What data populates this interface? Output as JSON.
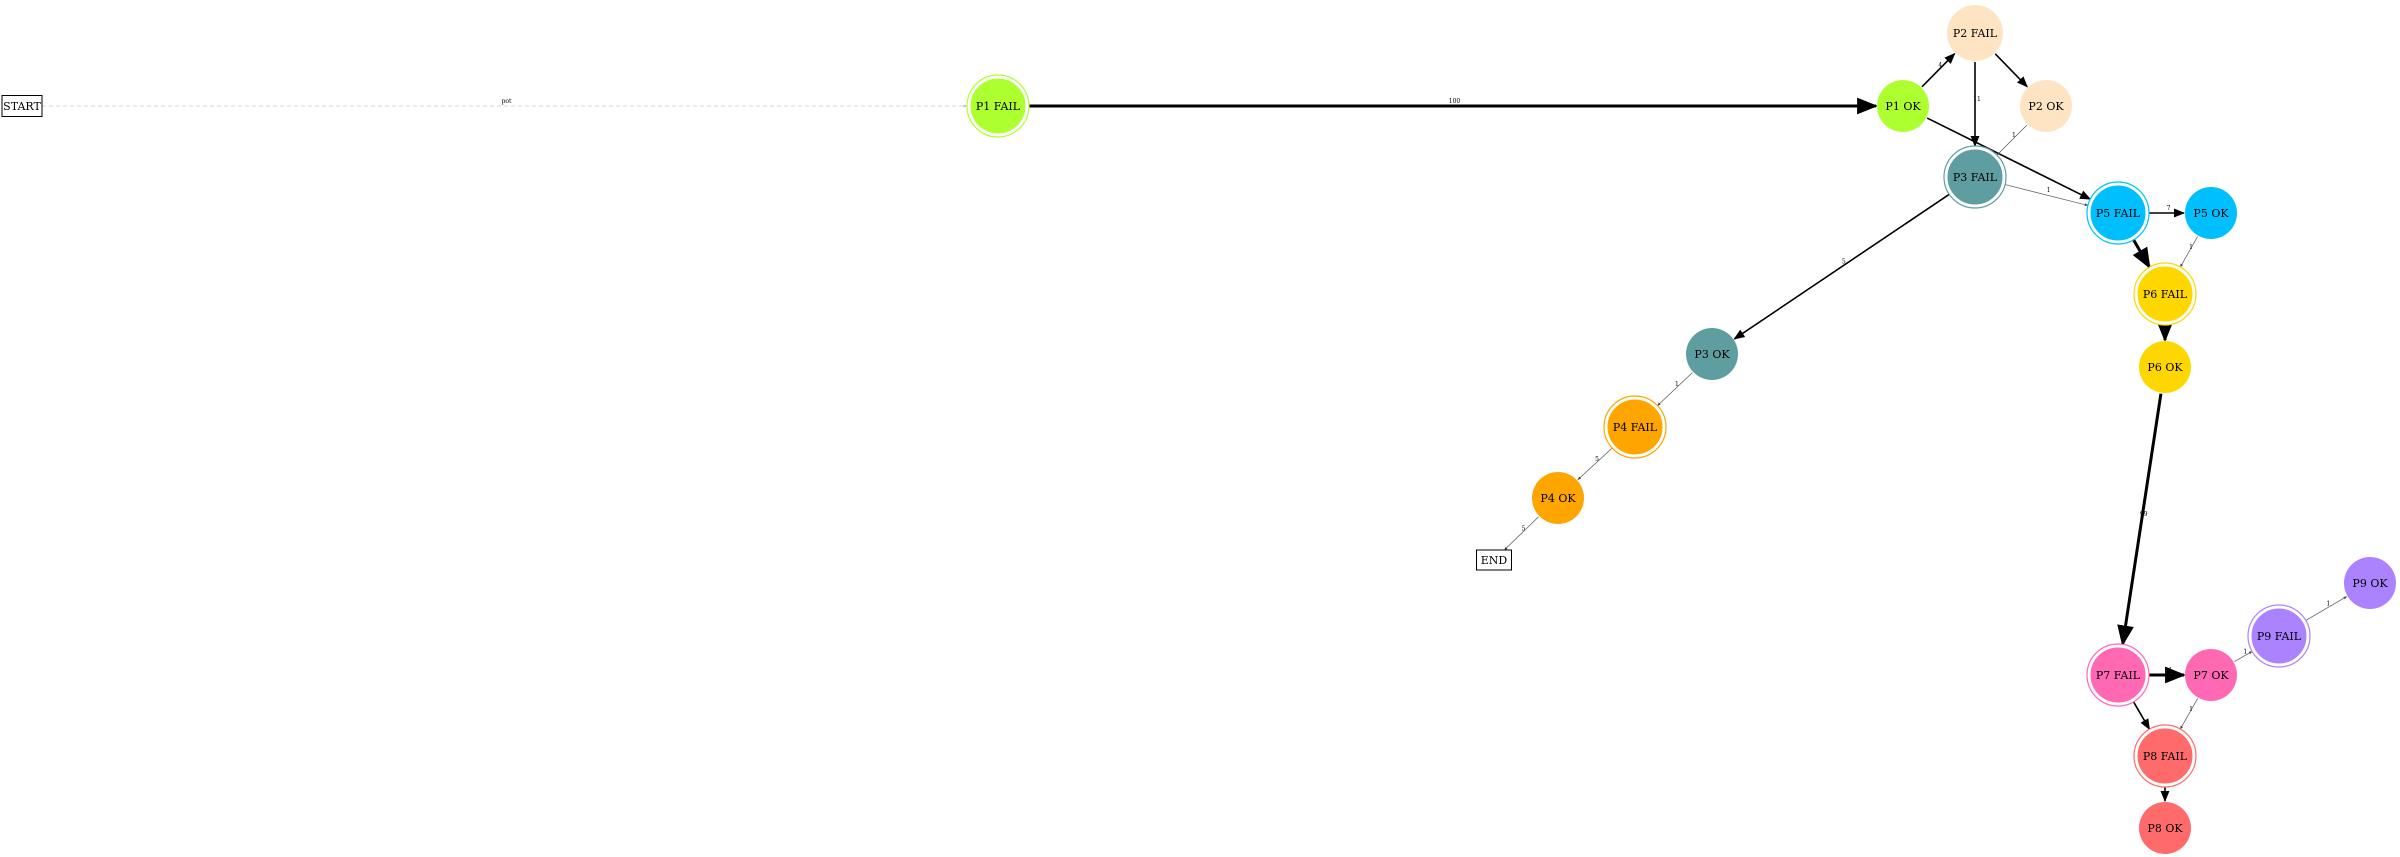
{
  "diagram": {
    "nodes": [
      {
        "id": "start",
        "label": "START",
        "shape": "box"
      },
      {
        "id": "end",
        "label": "END",
        "shape": "box"
      },
      {
        "id": "p1fail",
        "label": "P1 FAIL",
        "color": "#adff2f",
        "double": true
      },
      {
        "id": "p1ok",
        "label": "P1 OK",
        "color": "#adff2f",
        "double": false
      },
      {
        "id": "p2fail",
        "label": "P2 FAIL",
        "color": "#ffe4c4",
        "double": false
      },
      {
        "id": "p2ok",
        "label": "P2 OK",
        "color": "#ffe4c4",
        "double": false
      },
      {
        "id": "p3fail",
        "label": "P3 FAIL",
        "color": "#5f9ea0",
        "double": true
      },
      {
        "id": "p3ok",
        "label": "P3 OK",
        "color": "#5f9ea0",
        "double": false
      },
      {
        "id": "p4fail",
        "label": "P4 FAIL",
        "color": "#ffa500",
        "double": true
      },
      {
        "id": "p4ok",
        "label": "P4 OK",
        "color": "#ffa500",
        "double": false
      },
      {
        "id": "p5fail",
        "label": "P5 FAIL",
        "color": "#00bfff",
        "double": true
      },
      {
        "id": "p5ok",
        "label": "P5 OK",
        "color": "#00bfff",
        "double": false
      },
      {
        "id": "p6fail",
        "label": "P6 FAIL",
        "color": "#ffd700",
        "double": true
      },
      {
        "id": "p6ok",
        "label": "P6 OK",
        "color": "#ffd700",
        "double": false
      },
      {
        "id": "p7fail",
        "label": "P7 FAIL",
        "color": "#ff69b4",
        "double": true
      },
      {
        "id": "p7ok",
        "label": "P7 OK",
        "color": "#ff69b4",
        "double": false
      },
      {
        "id": "p8fail",
        "label": "P8 FAIL",
        "color": "#ff6a6a",
        "double": true
      },
      {
        "id": "p8ok",
        "label": "P8 OK",
        "color": "#ff6a6a",
        "double": false
      },
      {
        "id": "p9fail",
        "label": "P9 FAIL",
        "color": "#ab82ff",
        "double": true
      },
      {
        "id": "p9ok",
        "label": "P9 OK",
        "color": "#ab82ff",
        "double": false
      }
    ],
    "edges": [
      {
        "from": "start",
        "to": "p1fail",
        "label": "pot",
        "style": "dashed"
      },
      {
        "from": "p1fail",
        "to": "p1ok",
        "label": "100",
        "style": "bold"
      },
      {
        "from": "p1ok",
        "to": "p2fail",
        "label": "4",
        "style": "solid"
      },
      {
        "from": "p1ok",
        "to": "p5fail",
        "label": "",
        "style": "solid"
      },
      {
        "from": "p2fail",
        "to": "p2ok",
        "label": "",
        "style": "solid"
      },
      {
        "from": "p2fail",
        "to": "p3fail",
        "label": "11",
        "style": "solid"
      },
      {
        "from": "p2ok",
        "to": "p3fail",
        "label": "1",
        "style": "thin"
      },
      {
        "from": "p3fail",
        "to": "p5fail",
        "label": "1",
        "style": "thin"
      },
      {
        "from": "p3fail",
        "to": "p3ok",
        "label": "5",
        "style": "solid"
      },
      {
        "from": "p3ok",
        "to": "p4fail",
        "label": "1",
        "style": "thin"
      },
      {
        "from": "p4fail",
        "to": "p4ok",
        "label": "5",
        "style": "thin"
      },
      {
        "from": "p4ok",
        "to": "end",
        "label": "5",
        "style": "thin"
      },
      {
        "from": "p5fail",
        "to": "p5ok",
        "label": "7",
        "style": "solid"
      },
      {
        "from": "p5fail",
        "to": "p6fail",
        "label": "",
        "style": "bold"
      },
      {
        "from": "p5ok",
        "to": "p6fail",
        "label": "1",
        "style": "thin"
      },
      {
        "from": "p6fail",
        "to": "p6ok",
        "label": "",
        "style": "bold"
      },
      {
        "from": "p6ok",
        "to": "p7fail",
        "label": "99",
        "style": "bold"
      },
      {
        "from": "p7fail",
        "to": "p7ok",
        "label": "11",
        "style": "bold"
      },
      {
        "from": "p7fail",
        "to": "p8fail",
        "label": "",
        "style": "solid"
      },
      {
        "from": "p7ok",
        "to": "p8fail",
        "label": "1",
        "style": "thin"
      },
      {
        "from": "p7ok",
        "to": "p9fail",
        "label": "1",
        "style": "thin"
      },
      {
        "from": "p9fail",
        "to": "p9ok",
        "label": "1",
        "style": "thin"
      },
      {
        "from": "p8fail",
        "to": "p8ok",
        "label": "",
        "style": "solid"
      }
    ]
  }
}
